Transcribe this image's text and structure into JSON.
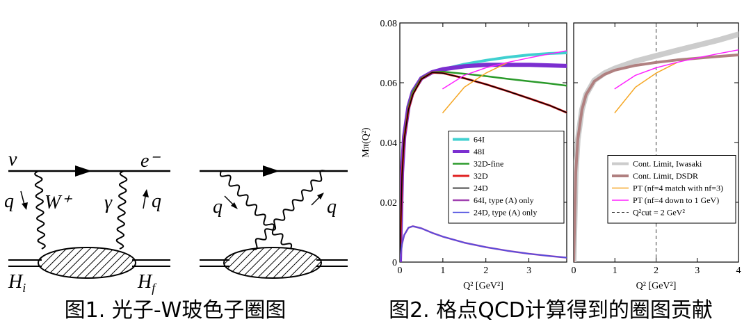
{
  "diagrams": [
    {
      "labels": [
        {
          "text": "ν"
        },
        {
          "text": "e⁻"
        },
        {
          "text": "q"
        },
        {
          "text": "W⁺"
        },
        {
          "text": "γ"
        },
        {
          "text": "q"
        },
        {
          "text": "H",
          "sub": "i"
        },
        {
          "text": "H",
          "sub": "f"
        }
      ]
    },
    {
      "labels": [
        {
          "text": "q"
        },
        {
          "text": "q"
        }
      ]
    }
  ],
  "captions": [
    "图1. 光子-W玻色子圈图",
    "图2. 格点QCD计算得到的圈图贡献"
  ],
  "chart_data": [
    {
      "type": "line",
      "ylabel": "Mπ(Q²)",
      "xlabel": "Q²  [GeV²]",
      "x": [
        0,
        0.05,
        0.1,
        0.2,
        0.3,
        0.5,
        0.75,
        1,
        1.5,
        2,
        2.5,
        3,
        3.5,
        3.88
      ],
      "xlim": [
        0,
        3.88
      ],
      "ylim": [
        0,
        0.08
      ],
      "xticks": [
        0,
        1,
        2,
        3
      ],
      "yticks": [
        0,
        0.02,
        0.04,
        0.06,
        0.08
      ],
      "ytick_labels": true,
      "legend": "lower right",
      "series": [
        {
          "name": "64I",
          "color": "#40d0d0",
          "width": 4,
          "values": [
            0,
            0.03,
            0.042,
            0.052,
            0.057,
            0.0615,
            0.0635,
            0.0645,
            0.0662,
            0.0675,
            0.0685,
            0.0693,
            0.0698,
            0.07
          ]
        },
        {
          "name": "48I",
          "color": "#7b2fd0",
          "width": 6,
          "values": [
            0,
            0.03,
            0.042,
            0.052,
            0.057,
            0.0615,
            0.0635,
            0.0645,
            0.0655,
            0.066,
            0.066,
            0.066,
            0.0658,
            0.0656
          ]
        },
        {
          "name": "32D-fine",
          "color": "#2a9a2a",
          "width": 2.5,
          "values": [
            0,
            0.03,
            0.042,
            0.052,
            0.057,
            0.0615,
            0.0635,
            0.0637,
            0.063,
            0.0622,
            0.0613,
            0.0605,
            0.0597,
            0.059
          ]
        },
        {
          "name": "32D",
          "color": "#e02020",
          "width": 3,
          "values": [
            0,
            0.029,
            0.041,
            0.051,
            0.056,
            0.0612,
            0.0634,
            0.0632,
            0.0615,
            0.0595,
            0.0572,
            0.0548,
            0.0523,
            0.05
          ]
        },
        {
          "name": "24D",
          "color": "#000000",
          "width": 1.5,
          "values": [
            0,
            0.029,
            0.041,
            0.051,
            0.056,
            0.0612,
            0.0634,
            0.0632,
            0.0615,
            0.0595,
            0.0572,
            0.0548,
            0.0523,
            0.05
          ]
        },
        {
          "name": "64I, type (A) only",
          "color": "#a040b0",
          "width": 2.5,
          "values": [
            0,
            0.006,
            0.009,
            0.0115,
            0.012,
            0.0113,
            0.0098,
            0.0085,
            0.0065,
            0.005,
            0.0038,
            0.0028,
            0.002,
            0.0015
          ]
        },
        {
          "name": "24D, type (A) only",
          "color": "#5050e0",
          "width": 1.5,
          "values": [
            0,
            0.006,
            0.009,
            0.0115,
            0.012,
            0.0113,
            0.0098,
            0.0085,
            0.0065,
            0.005,
            0.0038,
            0.0028,
            0.002,
            0.0015
          ]
        },
        {
          "color": "#f5a623",
          "width": 1.5,
          "values": [
            null,
            null,
            null,
            null,
            null,
            null,
            null,
            0.05,
            0.0585,
            0.0632,
            0.0667,
            null,
            null,
            null
          ]
        },
        {
          "color": "#ff20ff",
          "width": 1.5,
          "values": [
            null,
            null,
            null,
            null,
            null,
            null,
            null,
            0.058,
            0.0625,
            0.065,
            0.0668,
            0.0683,
            0.0697,
            0.0707
          ]
        }
      ]
    },
    {
      "type": "line",
      "xlabel": "Q²  [GeV²]",
      "x": [
        0,
        0.05,
        0.1,
        0.2,
        0.3,
        0.5,
        0.75,
        1,
        1.5,
        2,
        2.5,
        3,
        3.5,
        4
      ],
      "xlim": [
        0,
        4
      ],
      "ylim": [
        0,
        0.08
      ],
      "xticks": [
        0,
        1,
        2,
        3,
        4
      ],
      "yticks": [
        0,
        0.02,
        0.04,
        0.06,
        0.08
      ],
      "ytick_labels": false,
      "legend": "lower right",
      "vline": {
        "name": "Q²cut = 2 GeV²",
        "value": 2,
        "color": "#333333"
      },
      "series": [
        {
          "name": "Cont. Limit, Iwasaki",
          "color": "#cccccc",
          "width": 8,
          "values": [
            0,
            0.03,
            0.041,
            0.051,
            0.056,
            0.0608,
            0.0632,
            0.0648,
            0.0672,
            0.069,
            0.0708,
            0.0725,
            0.0742,
            0.0762
          ]
        },
        {
          "name": "Cont. Limit, DSDR",
          "color": "#b08080",
          "width": 4,
          "values": [
            0,
            0.03,
            0.041,
            0.051,
            0.056,
            0.0605,
            0.0628,
            0.0642,
            0.0658,
            0.0668,
            0.0676,
            0.0682,
            0.0688,
            0.0693
          ]
        },
        {
          "name": "PT (nf=4 match with nf=3)",
          "color": "#f5a623",
          "width": 1.5,
          "values": [
            null,
            null,
            null,
            null,
            null,
            null,
            null,
            0.05,
            0.0585,
            0.0632,
            0.0667,
            null,
            null,
            null
          ]
        },
        {
          "name": "PT (nf=4 down to 1 GeV)",
          "color": "#ff20ff",
          "width": 1.5,
          "values": [
            null,
            null,
            null,
            null,
            null,
            null,
            null,
            0.058,
            0.0625,
            0.065,
            0.0668,
            0.0683,
            0.0697,
            0.071
          ]
        }
      ]
    }
  ]
}
